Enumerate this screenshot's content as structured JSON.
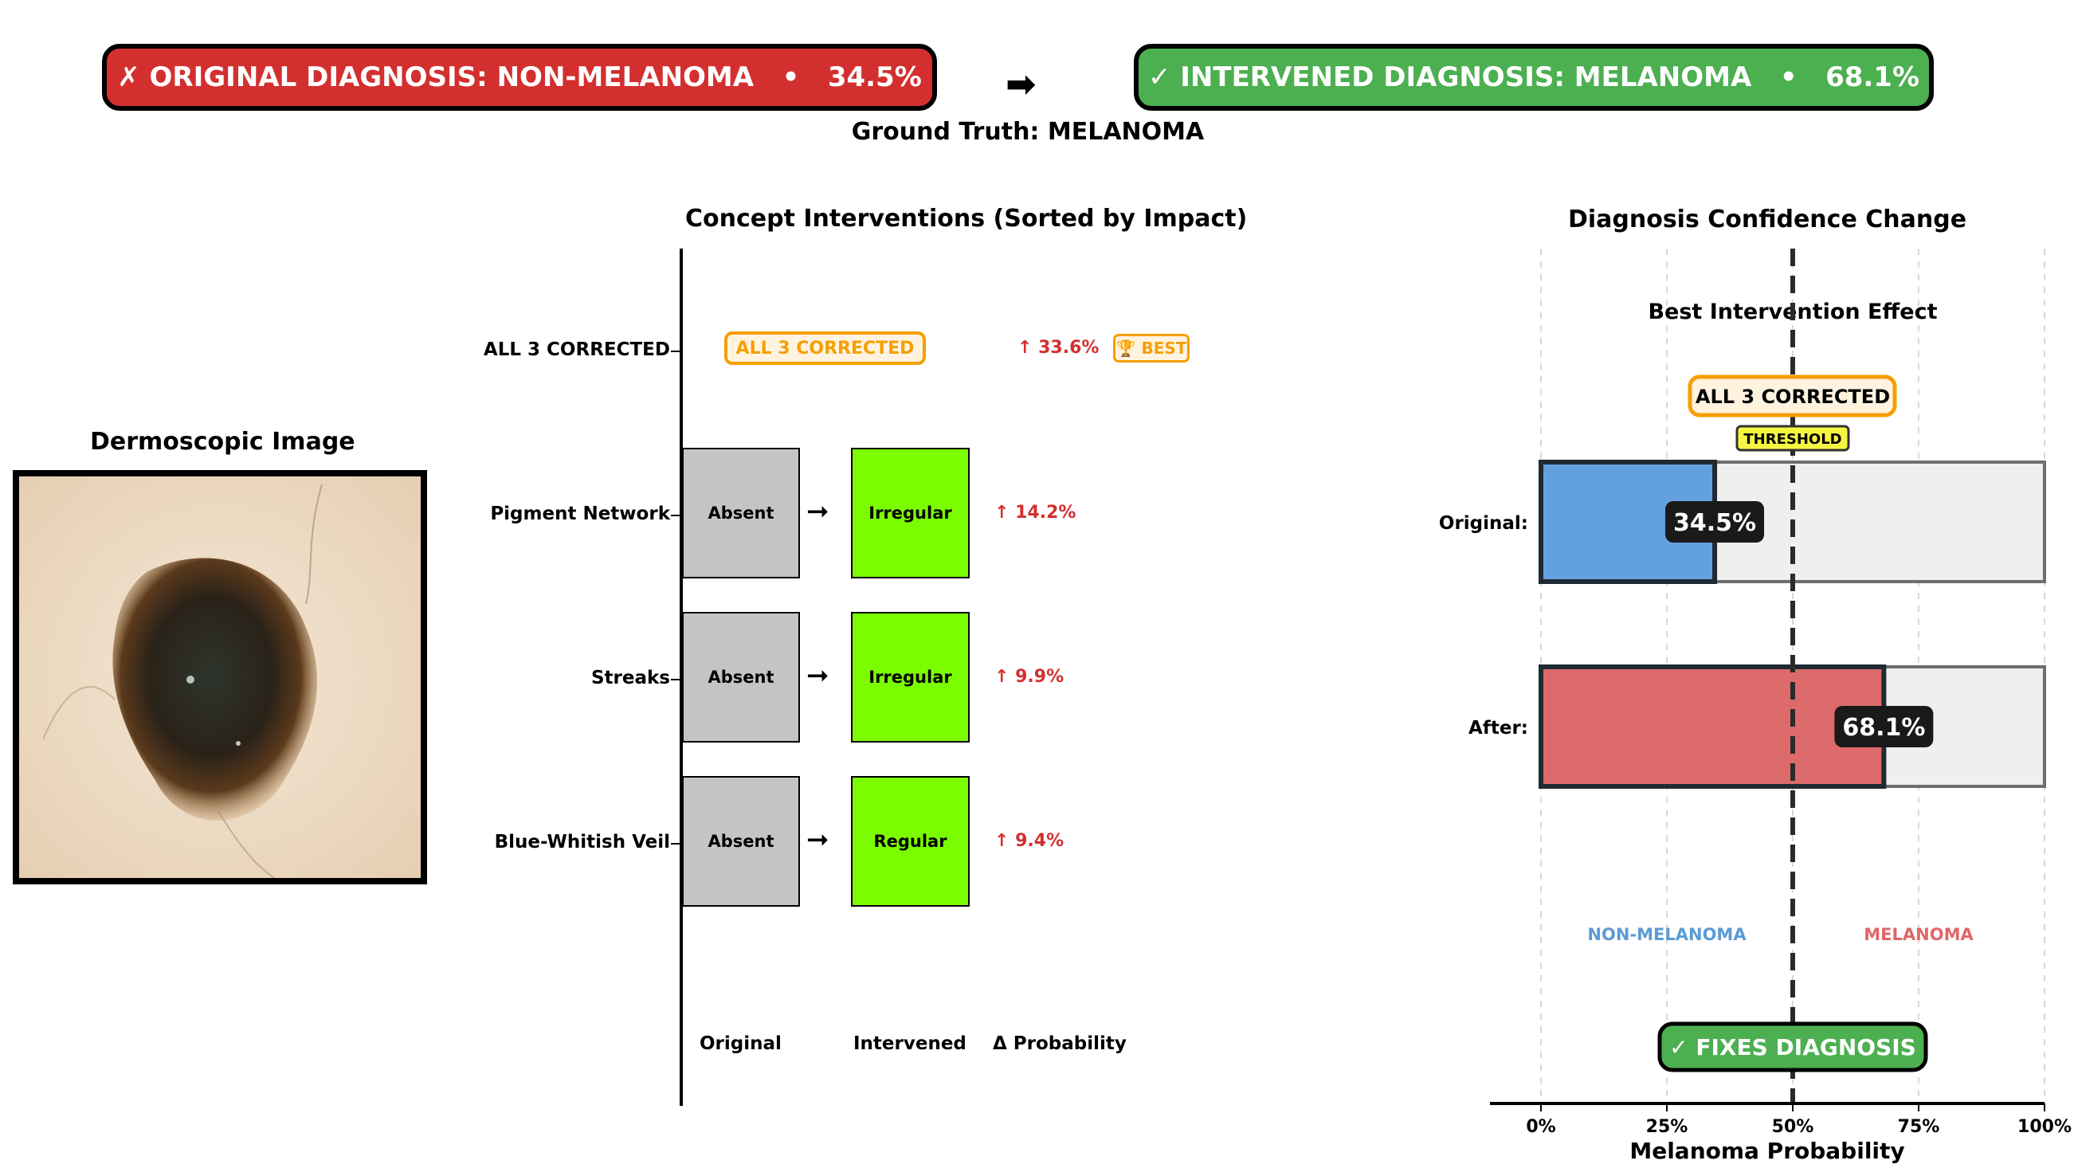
{
  "header": {
    "original_banner": "✗ ORIGINAL DIAGNOSIS: NON-MELANOMA   •   34.5%",
    "intervened_banner": "✓ INTERVENED DIAGNOSIS: MELANOMA   •   68.1%",
    "arrow": "➡",
    "ground_truth": "Ground Truth: MELANOMA",
    "colors": {
      "red": "#d32f2f",
      "green": "#4caf50"
    }
  },
  "image_panel": {
    "title": "Dermoscopic Image"
  },
  "concepts_panel": {
    "title": "Concept Interventions (Sorted by Impact)",
    "rows": [
      {
        "label": "ALL 3 CORRECTED",
        "tag": "ALL 3 CORRECTED",
        "delta": "↑ 33.6%",
        "badge": "🏆 BEST"
      },
      {
        "label": "Pigment Network",
        "original": "Absent",
        "intervened": "Irregular",
        "delta": "↑ 14.2%"
      },
      {
        "label": "Streaks",
        "original": "Absent",
        "intervened": "Irregular",
        "delta": "↑ 9.9%"
      },
      {
        "label": "Blue-Whitish Veil",
        "original": "Absent",
        "intervened": "Regular",
        "delta": "↑ 9.4%"
      }
    ],
    "column_labels": {
      "original": "Original",
      "intervened": "Intervened",
      "delta": "Δ Probability"
    },
    "colors": {
      "original_box": "#c4c4c4",
      "intervened_box": "#7cfc00",
      "delta_text": "#d32f2f",
      "tag": "#f59f00"
    }
  },
  "chart_data": {
    "type": "bar",
    "orientation": "horizontal",
    "title": "Diagnosis Confidence Change",
    "subtitle": "Best Intervention Effect",
    "annotation": "ALL 3 CORRECTED",
    "threshold": {
      "value": 50,
      "label": "THRESHOLD"
    },
    "categories": [
      "Original:",
      "After:"
    ],
    "values": [
      34.5,
      68.1
    ],
    "value_labels": [
      "34.5%",
      "68.1%"
    ],
    "colors": [
      "#63a0e0",
      "#dd6b6b"
    ],
    "xlabel": "Melanoma Probability",
    "xlim": [
      0,
      100
    ],
    "xticks": [
      0,
      25,
      50,
      75,
      100
    ],
    "xtick_labels": [
      "0%",
      "25%",
      "50%",
      "75%",
      "100%"
    ],
    "region_labels": [
      {
        "text": "NON-MELANOMA",
        "x": 25,
        "color": "#5b9bd5"
      },
      {
        "text": "MELANOMA",
        "x": 75,
        "color": "#e06666"
      }
    ],
    "result_badge": "✓ FIXES DIAGNOSIS",
    "grid": true
  }
}
